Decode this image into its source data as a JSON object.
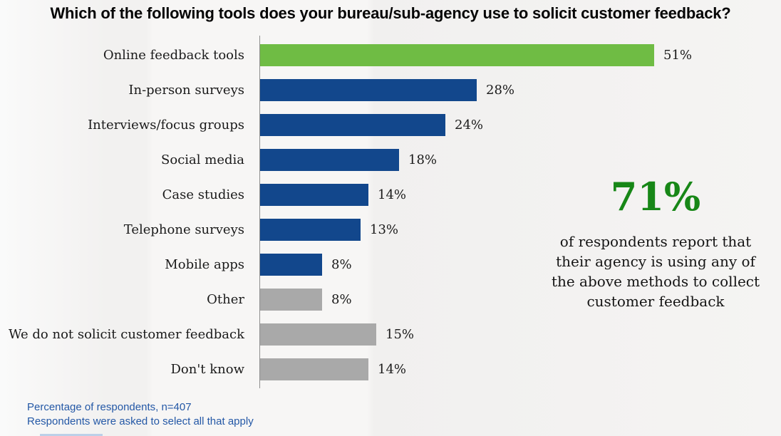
{
  "title": "Which of the following tools does your bureau/sub-agency use to solicit customer feedback?",
  "chart_data": {
    "type": "bar",
    "orientation": "horizontal",
    "title": "Which of the following tools does your bureau/sub-agency use to solicit customer feedback?",
    "categories": [
      "Online feedback tools",
      "In-person surveys",
      "Interviews/focus groups",
      "Social media",
      "Case studies",
      "Telephone surveys",
      "Mobile apps",
      "Other",
      "We do not solicit customer feedback",
      "Don't know"
    ],
    "values": [
      51,
      28,
      24,
      18,
      14,
      13,
      8,
      8,
      15,
      14
    ],
    "value_labels": [
      "51%",
      "28%",
      "24%",
      "18%",
      "14%",
      "13%",
      "8%",
      "8%",
      "15%",
      "14%"
    ],
    "bar_colors": [
      "#6fbc44",
      "#12478c",
      "#12478c",
      "#12478c",
      "#12478c",
      "#12478c",
      "#12478c",
      "#a9a9a9",
      "#a9a9a9",
      "#a9a9a9"
    ],
    "xlabel": "",
    "ylabel": "",
    "xlim": [
      0,
      51
    ],
    "grid": false,
    "legend": null,
    "data_labels": true
  },
  "annotation": {
    "stat": "71%",
    "stat_color": "#178717",
    "lines": [
      "of respondents report that",
      "their agency is using any of",
      "the above methods to collect",
      "customer feedback"
    ]
  },
  "footnotes": [
    "Percentage of respondents, n=407",
    "Respondents were asked to select all that apply"
  ],
  "colors": {
    "bar_highlight_green": "#6fbc44",
    "bar_primary_blue": "#12478c",
    "bar_neutral_gray": "#a9a9a9",
    "axis_line": "#8f8f8f",
    "stat_green": "#178717",
    "footnote_blue": "#2458a6",
    "label_text": "#1a1a1a"
  }
}
